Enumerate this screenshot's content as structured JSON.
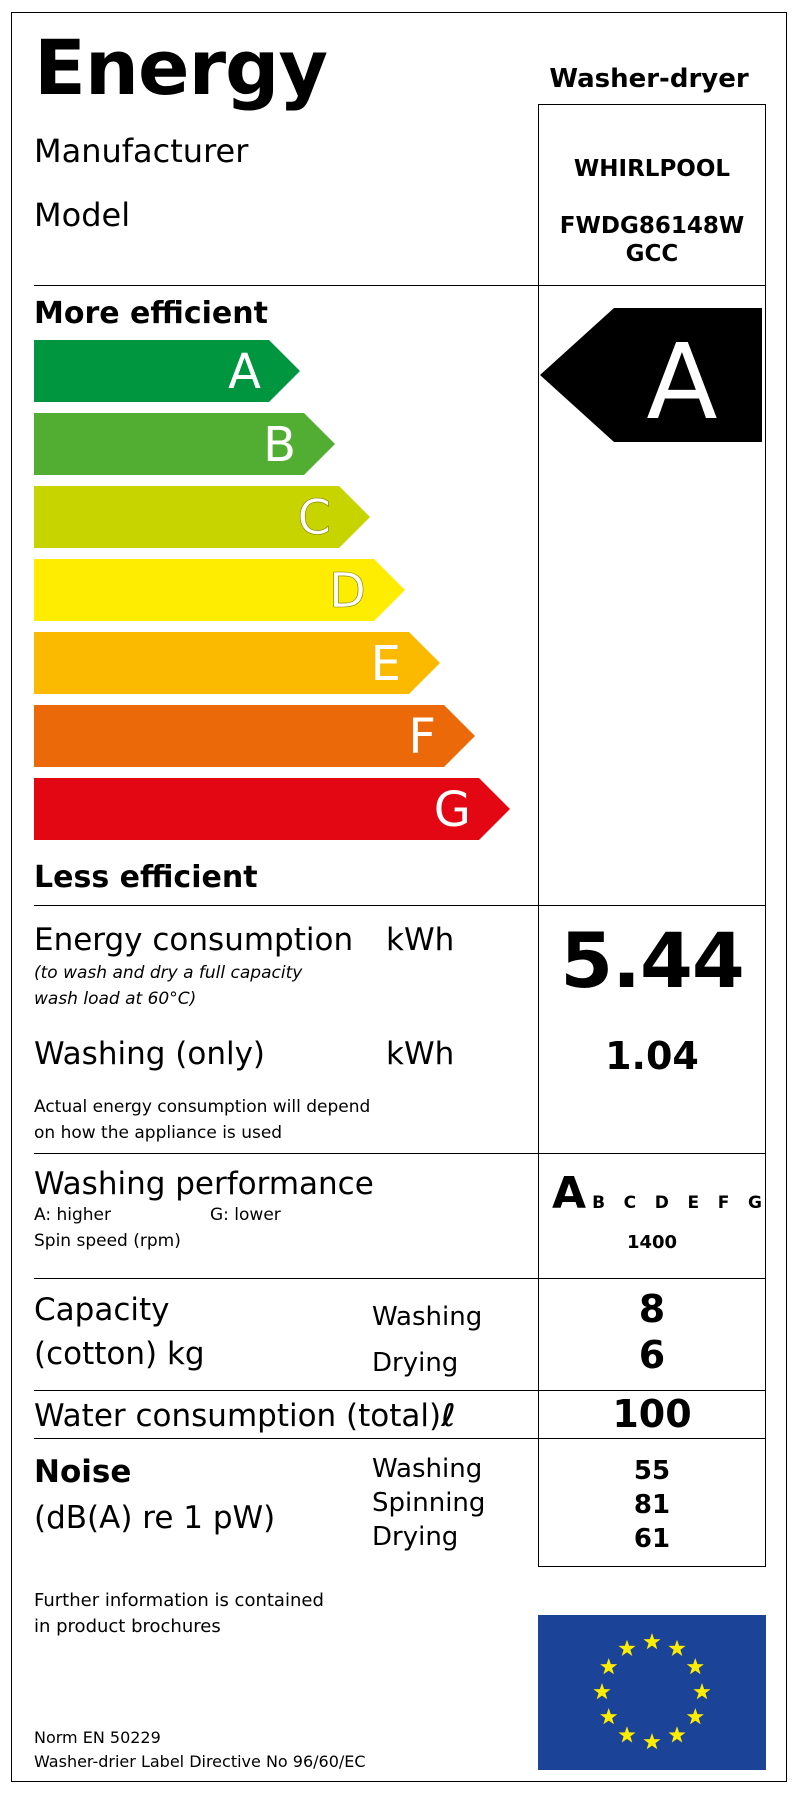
{
  "title": "Energy",
  "appliance_type": "Washer-dryer",
  "manufacturer": {
    "label": "Manufacturer",
    "value": "WHIRLPOOL"
  },
  "model": {
    "label": "Model",
    "value_line1": "FWDG86148W",
    "value_line2": "GCC"
  },
  "scale": {
    "more_label": "More efficient",
    "less_label": "Less efficient",
    "classes": [
      {
        "letter": "A",
        "color": "#009640"
      },
      {
        "letter": "B",
        "color": "#52ae32"
      },
      {
        "letter": "C",
        "color": "#c8d400"
      },
      {
        "letter": "D",
        "color": "#ffed00"
      },
      {
        "letter": "E",
        "color": "#fbba00"
      },
      {
        "letter": "F",
        "color": "#eb6909"
      },
      {
        "letter": "G",
        "color": "#e30613"
      }
    ],
    "rating": "A"
  },
  "energy": {
    "label": "Energy consumption",
    "unit": "kWh",
    "note_line1": "(to wash and dry a full capacity",
    "note_line2": "wash load at 60°C)",
    "value": "5.44"
  },
  "washing_only": {
    "label": "Washing (only)",
    "unit": "kWh",
    "value": "1.04"
  },
  "actual_note": {
    "line1": "Actual energy consumption will depend",
    "line2": "on how the appliance is used"
  },
  "washing_performance": {
    "label": "Washing performance",
    "higher": "A: higher",
    "lower": "G: lower",
    "spin_label": "Spin speed (rpm)",
    "rating": "A",
    "others": [
      "B",
      "C",
      "D",
      "E",
      "F",
      "G"
    ],
    "spin_value": "1400"
  },
  "capacity": {
    "label_line1": "Capacity",
    "label_line2": "(cotton) kg",
    "washing_label": "Washing",
    "drying_label": "Drying",
    "washing_value": "8",
    "drying_value": "6"
  },
  "water": {
    "label": "Water consumption (total)",
    "unit": "ℓ",
    "value": "100"
  },
  "noise": {
    "label": "Noise",
    "unit": "(dB(A) re 1 pW)",
    "washing_label": "Washing",
    "spinning_label": "Spinning",
    "drying_label": "Drying",
    "washing_value": "55",
    "spinning_value": "81",
    "drying_value": "61"
  },
  "further_info": {
    "line1": "Further information is contained",
    "line2": "in product brochures"
  },
  "norm": {
    "line1": "Norm EN 50229",
    "line2": "Washer-drier Label Directive No 96/60/EC"
  },
  "eu_flag": {
    "icon": "eu-flag-icon",
    "background": "#1b4398",
    "star_color": "#ffed00"
  }
}
